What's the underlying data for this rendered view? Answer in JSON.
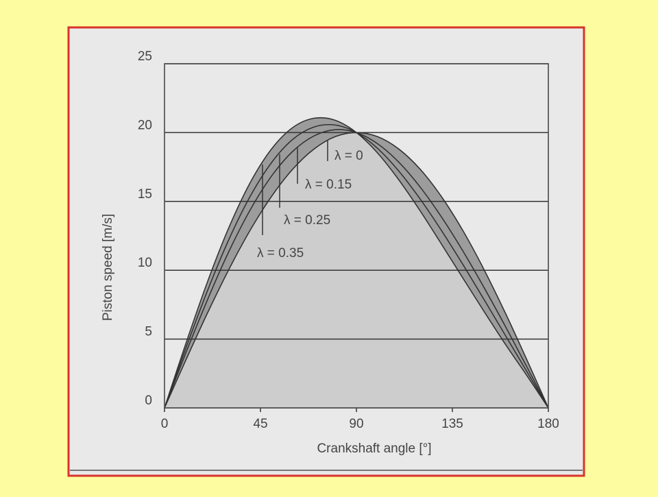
{
  "chart_data": {
    "type": "line",
    "x_label": "Crankshaft angle [°]",
    "y_label": "Piston speed [m/s]",
    "x": [
      0,
      10,
      20,
      30,
      40,
      50,
      60,
      70,
      80,
      90,
      100,
      110,
      120,
      130,
      140,
      150,
      160,
      170,
      180
    ],
    "series": [
      {
        "name": "λ = 0",
        "color": "#333333",
        "values": [
          0,
          3.47,
          6.84,
          10,
          12.86,
          15.32,
          17.32,
          18.79,
          19.7,
          20,
          19.7,
          18.79,
          17.32,
          15.32,
          12.86,
          10,
          6.84,
          3.47,
          0
        ]
      },
      {
        "name": "λ = 0.15",
        "color": "#333333",
        "values": [
          0,
          3.99,
          7.8,
          11.3,
          14.33,
          16.8,
          18.62,
          19.75,
          20.21,
          20,
          19.18,
          17.83,
          16.02,
          13.84,
          11.38,
          8.7,
          5.88,
          2.96,
          0
        ]
      },
      {
        "name": "λ = 0.25",
        "color": "#333333",
        "values": [
          0,
          4.33,
          8.45,
          12.17,
          15.32,
          17.78,
          19.49,
          20.4,
          20.55,
          20,
          18.84,
          17.18,
          15.15,
          12.86,
          10.4,
          7.83,
          5.23,
          2.62,
          0
        ]
      },
      {
        "name": "λ = 0.35",
        "color": "#333333",
        "values": [
          0,
          4.67,
          9.09,
          13.03,
          16.31,
          18.77,
          20.35,
          21.04,
          20.9,
          20,
          18.5,
          16.54,
          14.29,
          11.87,
          9.41,
          6.97,
          4.59,
          2.33,
          0
        ]
      }
    ],
    "xlim": [
      0,
      180
    ],
    "xticks": [
      0,
      45,
      90,
      135,
      180
    ],
    "ylim": [
      0,
      25
    ],
    "yticks": [
      0,
      5,
      10,
      15,
      20,
      25
    ],
    "grid": true
  }
}
